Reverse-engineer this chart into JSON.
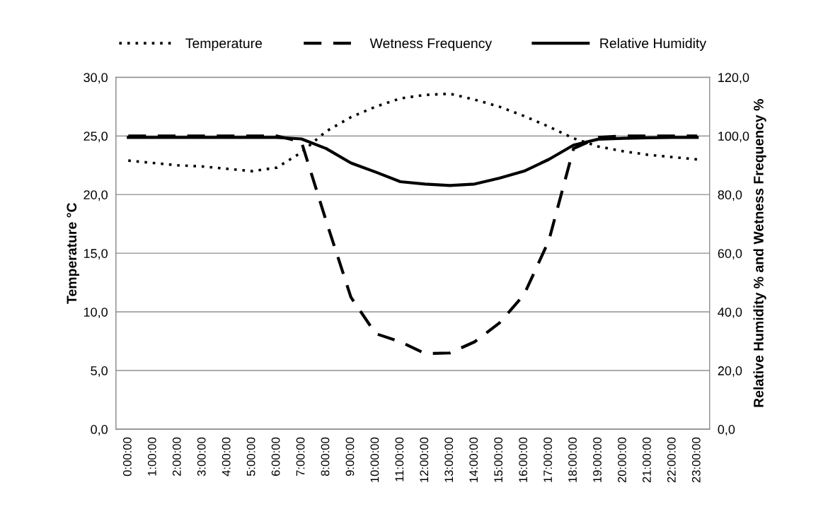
{
  "chart_data": {
    "type": "line",
    "categories": [
      "0:00:00",
      "1:00:00",
      "2:00:00",
      "3:00:00",
      "4:00:00",
      "5:00:00",
      "6:00:00",
      "7:00:00",
      "8:00:00",
      "9:00:00",
      "10:00:00",
      "11:00:00",
      "12:00:00",
      "13:00:00",
      "14:00:00",
      "15:00:00",
      "16:00:00",
      "17:00:00",
      "18:00:00",
      "19:00:00",
      "20:00:00",
      "21:00:00",
      "22:00:00",
      "23:00:00"
    ],
    "ylabel": "Temperature °C",
    "y2label": "Relative Humidity % and Wetness Frequency %",
    "series": [
      {
        "name": "Temperature",
        "color": "#000000",
        "line_style": "dotted",
        "values": [
          22.9,
          22.7,
          22.5,
          22.4,
          22.2,
          22.0,
          22.3,
          23.6,
          25.4,
          26.6,
          27.5,
          28.2,
          28.5,
          28.6,
          28.1,
          27.5,
          26.7,
          25.8,
          24.8,
          24.1,
          23.7,
          23.4,
          23.2,
          23.0
        ]
      },
      {
        "name": "Wetness Frequency",
        "color": "#000000",
        "line_style": "dashed",
        "axis": "y2",
        "values": [
          100,
          100,
          100,
          100,
          100,
          100,
          100,
          98,
          71,
          45,
          32.6,
          29.8,
          25.8,
          26,
          29.8,
          36.2,
          45.9,
          64.3,
          95.7,
          99.5,
          100,
          100,
          100,
          100
        ]
      },
      {
        "name": "Relative Humidity",
        "color": "#000000",
        "line_style": "solid",
        "axis": "y2",
        "values": [
          99.5,
          99.5,
          99.5,
          99.5,
          99.5,
          99.5,
          99.5,
          99,
          95.7,
          90.8,
          87.7,
          84.4,
          83.6,
          83.1,
          83.6,
          85.6,
          88,
          92,
          96.9,
          98.9,
          99.2,
          99.4,
          99.5,
          99.5
        ]
      }
    ],
    "ylim": [
      0,
      30
    ],
    "yticks": [
      {
        "value": 0,
        "label": "0,0"
      },
      {
        "value": 5,
        "label": "5,0"
      },
      {
        "value": 10,
        "label": "10,0"
      },
      {
        "value": 15,
        "label": "15,0"
      },
      {
        "value": 20,
        "label": "20,0"
      },
      {
        "value": 25,
        "label": "25,0"
      },
      {
        "value": 30,
        "label": "30,0"
      }
    ],
    "y2lim": [
      0,
      120
    ],
    "y2ticks": [
      {
        "value": 0,
        "label": "0,0"
      },
      {
        "value": 20,
        "label": "20,0"
      },
      {
        "value": 40,
        "label": "40,0"
      },
      {
        "value": 60,
        "label": "60,0"
      },
      {
        "value": 80,
        "label": "80,0"
      },
      {
        "value": 100,
        "label": "100,0"
      },
      {
        "value": 120,
        "label": "120,0"
      }
    ],
    "grid": "y",
    "legend": "top",
    "marker": "none"
  }
}
